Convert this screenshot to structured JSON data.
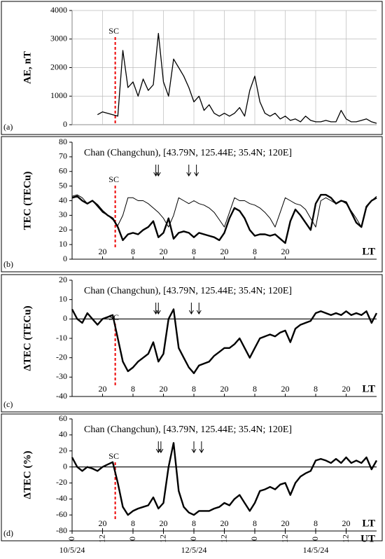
{
  "chart_data": [
    {
      "type": "line",
      "panel_label": "(a)",
      "ylabel": "AE, nT",
      "ylim": [
        0,
        4000
      ],
      "yticks": [
        0,
        1000,
        2000,
        3000,
        4000
      ],
      "grid": true,
      "xlim": [
        0,
        120
      ],
      "sc": {
        "label": "SC",
        "x": 17
      },
      "x": [
        0,
        2,
        4,
        6,
        8,
        10,
        12,
        14,
        16,
        18,
        20,
        22,
        24,
        26,
        28,
        30,
        32,
        34,
        36,
        38,
        40,
        42,
        44,
        46,
        48,
        50,
        52,
        54,
        56,
        58,
        60,
        62,
        64,
        66,
        68,
        70,
        72,
        74,
        76,
        78,
        80,
        82,
        84,
        86,
        88,
        90,
        92,
        94,
        96,
        98,
        100,
        102,
        104,
        106,
        108,
        110,
        112,
        114,
        116,
        118,
        120
      ],
      "series": [
        {
          "name": "AE",
          "color": "#000000",
          "width": 1.3,
          "values": [
            null,
            null,
            null,
            null,
            null,
            350,
            450,
            400,
            350,
            300,
            2600,
            1300,
            1500,
            1000,
            1600,
            1200,
            1400,
            3200,
            1500,
            1000,
            2300,
            2000,
            1700,
            1300,
            800,
            1000,
            500,
            700,
            400,
            300,
            400,
            300,
            400,
            600,
            300,
            1200,
            1700,
            800,
            400,
            300,
            400,
            200,
            300,
            150,
            200,
            100,
            300,
            150,
            100,
            100,
            150,
            100,
            100,
            500,
            200,
            100,
            100,
            150,
            200,
            100,
            50
          ]
        }
      ]
    },
    {
      "type": "line",
      "panel_label": "(b)",
      "ylabel": "TEC (TECu)",
      "ylim": [
        0,
        80
      ],
      "yticks": [
        0,
        10,
        20,
        30,
        40,
        50,
        60,
        70,
        80
      ],
      "xlim": [
        0,
        120
      ],
      "annotation": "Chan (Changchun), [43.79N, 125.44E; 35.4N; 120E]",
      "sc": {
        "label": "SC",
        "x": 17
      },
      "arrows_x": [
        33,
        34,
        46,
        49
      ],
      "lt_label": "LT",
      "lt_ticks": [
        {
          "value": 12,
          "label": "20"
        },
        {
          "value": 24,
          "label": "8"
        },
        {
          "value": 36,
          "label": "20"
        },
        {
          "value": 48,
          "label": "8"
        },
        {
          "value": 60,
          "label": "20"
        },
        {
          "value": 72,
          "label": "8"
        },
        {
          "value": 84,
          "label": "20"
        }
      ],
      "x": [
        0,
        2,
        4,
        6,
        8,
        10,
        12,
        14,
        16,
        18,
        20,
        22,
        24,
        26,
        28,
        30,
        32,
        34,
        36,
        38,
        40,
        42,
        44,
        46,
        48,
        50,
        52,
        54,
        56,
        58,
        60,
        62,
        64,
        66,
        68,
        70,
        72,
        74,
        76,
        78,
        80,
        82,
        84,
        86,
        88,
        90,
        92,
        94,
        96,
        98,
        100,
        102,
        104,
        106,
        108,
        110,
        112,
        114,
        116,
        118,
        120
      ],
      "series": [
        {
          "name": "TEC",
          "color": "#000000",
          "width": 2.4,
          "values": [
            42,
            43,
            40,
            38,
            40,
            37,
            33,
            30,
            28,
            22,
            13,
            17,
            18,
            17,
            20,
            22,
            26,
            15,
            18,
            28,
            14,
            18,
            19,
            18,
            15,
            18,
            17,
            16,
            15,
            13,
            18,
            28,
            35,
            33,
            28,
            20,
            16,
            17,
            17,
            16,
            17,
            14,
            11,
            26,
            34,
            30,
            25,
            20,
            38,
            44,
            44,
            42,
            38,
            40,
            39,
            32,
            25,
            22,
            36,
            40,
            42
          ]
        },
        {
          "name": "TEC median",
          "color": "#000000",
          "width": 1,
          "values": [
            43,
            44,
            42,
            38,
            40,
            36,
            32,
            30,
            27,
            23,
            30,
            42,
            42,
            40,
            40,
            38,
            35,
            32,
            28,
            22,
            30,
            42,
            40,
            38,
            40,
            38,
            37,
            35,
            32,
            27,
            22,
            32,
            42,
            40,
            40,
            38,
            37,
            35,
            32,
            28,
            22,
            32,
            42,
            40,
            38,
            37,
            34,
            28,
            22,
            40,
            42,
            40,
            38,
            40,
            38,
            33,
            28,
            22,
            35,
            40,
            43
          ]
        }
      ]
    },
    {
      "type": "line",
      "panel_label": "(c)",
      "ylabel": "ΔTEC (TECu)",
      "ylim": [
        -40,
        20
      ],
      "yticks": [
        -40,
        -30,
        -20,
        -10,
        0,
        10,
        20
      ],
      "zero_line": true,
      "xlim": [
        0,
        120
      ],
      "annotation": "Chan (Changchun), [43.79N, 125.44E; 35.4N; 120E]",
      "sc": {
        "label": "SC",
        "x": 17
      },
      "arrows_x": [
        33,
        34,
        47,
        50
      ],
      "lt_label": "LT",
      "lt_ticks": [
        {
          "value": 12,
          "label": "20"
        },
        {
          "value": 24,
          "label": "8"
        },
        {
          "value": 36,
          "label": "20"
        },
        {
          "value": 48,
          "label": "8"
        },
        {
          "value": 60,
          "label": "20"
        },
        {
          "value": 72,
          "label": "8"
        },
        {
          "value": 84,
          "label": "20"
        },
        {
          "value": 96,
          "label": "8"
        },
        {
          "value": 108,
          "label": "20"
        }
      ],
      "x": [
        0,
        2,
        4,
        6,
        8,
        10,
        12,
        14,
        16,
        18,
        20,
        22,
        24,
        26,
        28,
        30,
        32,
        34,
        36,
        38,
        40,
        42,
        44,
        46,
        48,
        50,
        52,
        54,
        56,
        58,
        60,
        62,
        64,
        66,
        68,
        70,
        72,
        74,
        76,
        78,
        80,
        82,
        84,
        86,
        88,
        90,
        92,
        94,
        96,
        98,
        100,
        102,
        104,
        106,
        108,
        110,
        112,
        114,
        116,
        118,
        120
      ],
      "series": [
        {
          "name": "ΔTEC",
          "color": "#000000",
          "width": 2.4,
          "values": [
            5,
            0,
            -2,
            3,
            0,
            -3,
            0,
            1,
            2,
            -10,
            -22,
            -27,
            -25,
            -22,
            -20,
            -18,
            -12,
            -22,
            -18,
            0,
            5,
            -15,
            -20,
            -25,
            -28,
            -24,
            -23,
            -22,
            -19,
            -17,
            -15,
            -15,
            -13,
            -10,
            -15,
            -20,
            -15,
            -10,
            -9,
            -8,
            -9,
            -7,
            -6,
            -12,
            -5,
            -3,
            -2,
            -1,
            3,
            4,
            3,
            2,
            3,
            2,
            4,
            2,
            3,
            2,
            4,
            -2,
            3
          ]
        }
      ]
    },
    {
      "type": "line",
      "panel_label": "(d)",
      "ylabel": "ΔTEC (%)",
      "ylim": [
        -80,
        60
      ],
      "yticks": [
        -80,
        -60,
        -40,
        -20,
        0,
        20,
        40,
        60
      ],
      "zero_line": true,
      "xlim": [
        0,
        120
      ],
      "annotation": "Chan (Changchun), [43.79N, 125.44E; 35.4N; 120E]",
      "sc": {
        "label": "SC",
        "x": 17
      },
      "arrows_x": [
        34,
        35,
        48,
        51
      ],
      "lt_label": "LT",
      "lt_ticks": [
        {
          "value": 12,
          "label": "20"
        },
        {
          "value": 24,
          "label": "8"
        },
        {
          "value": 36,
          "label": "20"
        },
        {
          "value": 48,
          "label": "8"
        },
        {
          "value": 60,
          "label": "20"
        },
        {
          "value": 72,
          "label": "8"
        },
        {
          "value": 84,
          "label": "20"
        },
        {
          "value": 96,
          "label": "8"
        },
        {
          "value": 108,
          "label": "20"
        }
      ],
      "ut_label": "UT",
      "xticks": [
        0,
        12,
        {
          "value": 24,
          "label": "0"
        },
        {
          "value": 36,
          "label": "12"
        },
        {
          "value": 48,
          "label": "0"
        },
        {
          "value": 60,
          "label": "12"
        },
        {
          "value": 72,
          "label": "0"
        },
        {
          "value": 84,
          "label": "12"
        },
        {
          "value": 96,
          "label": "0"
        },
        {
          "value": 108,
          "label": "12"
        }
      ],
      "dates": [
        {
          "value": 0,
          "label": "10/5/24"
        },
        {
          "value": 48,
          "label": "12/5/24"
        },
        {
          "value": 96,
          "label": "14/5/24"
        }
      ],
      "x": [
        0,
        2,
        4,
        6,
        8,
        10,
        12,
        14,
        16,
        18,
        20,
        22,
        24,
        26,
        28,
        30,
        32,
        34,
        36,
        38,
        40,
        42,
        44,
        46,
        48,
        50,
        52,
        54,
        56,
        58,
        60,
        62,
        64,
        66,
        68,
        70,
        72,
        74,
        76,
        78,
        80,
        82,
        84,
        86,
        88,
        90,
        92,
        94,
        96,
        98,
        100,
        102,
        104,
        106,
        108,
        110,
        112,
        114,
        116,
        118,
        120
      ],
      "series": [
        {
          "name": "ΔTEC %",
          "color": "#000000",
          "width": 2.4,
          "values": [
            12,
            0,
            -5,
            0,
            -2,
            -5,
            0,
            3,
            6,
            -20,
            -50,
            -60,
            -55,
            -52,
            -50,
            -48,
            -38,
            -52,
            -45,
            0,
            30,
            -30,
            -50,
            -57,
            -60,
            -55,
            -55,
            -55,
            -52,
            -50,
            -45,
            -48,
            -40,
            -35,
            -45,
            -55,
            -45,
            -30,
            -28,
            -25,
            -28,
            -22,
            -20,
            -35,
            -20,
            -12,
            -8,
            -5,
            8,
            10,
            8,
            5,
            10,
            5,
            12,
            5,
            8,
            5,
            12,
            -3,
            8
          ]
        }
      ]
    }
  ]
}
